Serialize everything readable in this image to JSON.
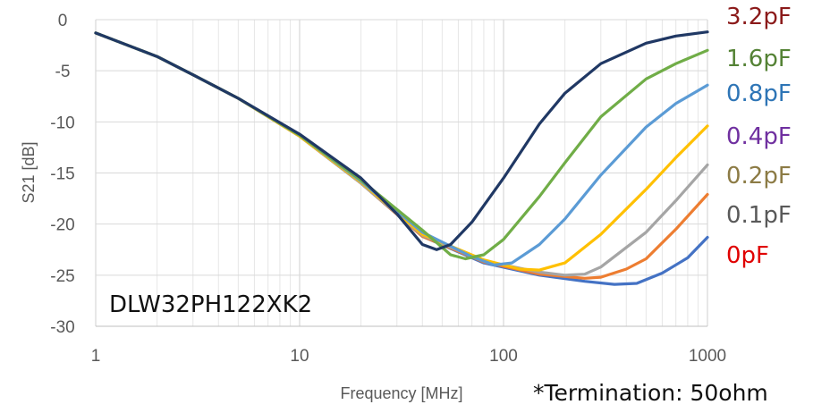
{
  "chart_data": {
    "type": "line",
    "title": "",
    "xlabel": "Frequency [MHz]",
    "ylabel": "S21 [dB]",
    "xscale": "log",
    "xlim": [
      1,
      1000
    ],
    "ylim": [
      -30,
      0
    ],
    "x_ticks": [
      "1",
      "10",
      "100",
      "1000"
    ],
    "y_ticks": [
      "0",
      "-5",
      "-10",
      "-15",
      "-20",
      "-25",
      "-30"
    ],
    "grid": true,
    "legend_position": "right",
    "annotation": "DLW32PH122XK2",
    "note": "*Termination: 50ohm",
    "series": [
      {
        "name": "3.2pF",
        "color": "#203864",
        "label_color": "#8B1A1A",
        "points": [
          [
            1,
            -1.3
          ],
          [
            2,
            -3.6
          ],
          [
            3,
            -5.4
          ],
          [
            5,
            -7.7
          ],
          [
            10,
            -11.2
          ],
          [
            20,
            -15.5
          ],
          [
            30,
            -19.0
          ],
          [
            40,
            -22.0
          ],
          [
            47,
            -22.5
          ],
          [
            55,
            -22.0
          ],
          [
            70,
            -19.8
          ],
          [
            100,
            -15.5
          ],
          [
            150,
            -10.2
          ],
          [
            200,
            -7.2
          ],
          [
            300,
            -4.3
          ],
          [
            500,
            -2.3
          ],
          [
            700,
            -1.6
          ],
          [
            1000,
            -1.2
          ]
        ]
      },
      {
        "name": "1.6pF",
        "color": "#70AD47",
        "label_color": "#548235",
        "points": [
          [
            1,
            -1.3
          ],
          [
            2,
            -3.6
          ],
          [
            3,
            -5.4
          ],
          [
            5,
            -7.7
          ],
          [
            10,
            -11.3
          ],
          [
            20,
            -15.7
          ],
          [
            40,
            -20.6
          ],
          [
            55,
            -23.0
          ],
          [
            65,
            -23.4
          ],
          [
            80,
            -23.0
          ],
          [
            100,
            -21.5
          ],
          [
            150,
            -17.3
          ],
          [
            200,
            -14.0
          ],
          [
            300,
            -9.5
          ],
          [
            500,
            -5.8
          ],
          [
            700,
            -4.3
          ],
          [
            1000,
            -3.0
          ]
        ]
      },
      {
        "name": "0.8pF",
        "color": "#5B9BD5",
        "label_color": "#2E75B6",
        "points": [
          [
            1,
            -1.3
          ],
          [
            2,
            -3.6
          ],
          [
            3,
            -5.4
          ],
          [
            5,
            -7.7
          ],
          [
            10,
            -11.3
          ],
          [
            20,
            -15.8
          ],
          [
            40,
            -20.8
          ],
          [
            70,
            -23.2
          ],
          [
            90,
            -24.0
          ],
          [
            110,
            -23.8
          ],
          [
            150,
            -22.0
          ],
          [
            200,
            -19.5
          ],
          [
            300,
            -15.2
          ],
          [
            500,
            -10.5
          ],
          [
            700,
            -8.2
          ],
          [
            1000,
            -6.4
          ]
        ]
      },
      {
        "name": "0.4pF",
        "color": "#FFC000",
        "label_color": "#7030A0",
        "points": [
          [
            1,
            -1.3
          ],
          [
            2,
            -3.6
          ],
          [
            3,
            -5.4
          ],
          [
            5,
            -7.7
          ],
          [
            10,
            -11.4
          ],
          [
            20,
            -15.9
          ],
          [
            40,
            -21.0
          ],
          [
            80,
            -23.5
          ],
          [
            120,
            -24.4
          ],
          [
            150,
            -24.5
          ],
          [
            200,
            -23.8
          ],
          [
            300,
            -21.0
          ],
          [
            500,
            -16.6
          ],
          [
            700,
            -13.5
          ],
          [
            1000,
            -10.4
          ]
        ]
      },
      {
        "name": "0.2pF",
        "color": "#A5A5A5",
        "label_color": "#8C7B45",
        "points": [
          [
            1,
            -1.3
          ],
          [
            2,
            -3.6
          ],
          [
            3,
            -5.4
          ],
          [
            5,
            -7.7
          ],
          [
            10,
            -11.4
          ],
          [
            20,
            -16.0
          ],
          [
            40,
            -21.1
          ],
          [
            80,
            -23.6
          ],
          [
            150,
            -24.7
          ],
          [
            200,
            -25.0
          ],
          [
            250,
            -24.9
          ],
          [
            300,
            -24.2
          ],
          [
            500,
            -20.8
          ],
          [
            700,
            -17.7
          ],
          [
            1000,
            -14.2
          ]
        ]
      },
      {
        "name": "0.1pF",
        "color": "#ED7D31",
        "label_color": "#595959",
        "points": [
          [
            1,
            -1.3
          ],
          [
            2,
            -3.6
          ],
          [
            3,
            -5.4
          ],
          [
            5,
            -7.7
          ],
          [
            10,
            -11.4
          ],
          [
            20,
            -16.0
          ],
          [
            40,
            -21.2
          ],
          [
            80,
            -23.7
          ],
          [
            150,
            -24.9
          ],
          [
            250,
            -25.3
          ],
          [
            300,
            -25.2
          ],
          [
            400,
            -24.4
          ],
          [
            500,
            -23.4
          ],
          [
            700,
            -20.5
          ],
          [
            1000,
            -17.1
          ]
        ]
      },
      {
        "name": "0pF",
        "color": "#4472C4",
        "label_color": "#E00000",
        "points": [
          [
            1,
            -1.3
          ],
          [
            2,
            -3.6
          ],
          [
            3,
            -5.4
          ],
          [
            5,
            -7.7
          ],
          [
            10,
            -11.4
          ],
          [
            20,
            -16.0
          ],
          [
            40,
            -21.2
          ],
          [
            80,
            -23.8
          ],
          [
            150,
            -25.0
          ],
          [
            250,
            -25.6
          ],
          [
            350,
            -25.9
          ],
          [
            450,
            -25.8
          ],
          [
            600,
            -24.8
          ],
          [
            800,
            -23.3
          ],
          [
            1000,
            -21.3
          ]
        ]
      }
    ]
  }
}
